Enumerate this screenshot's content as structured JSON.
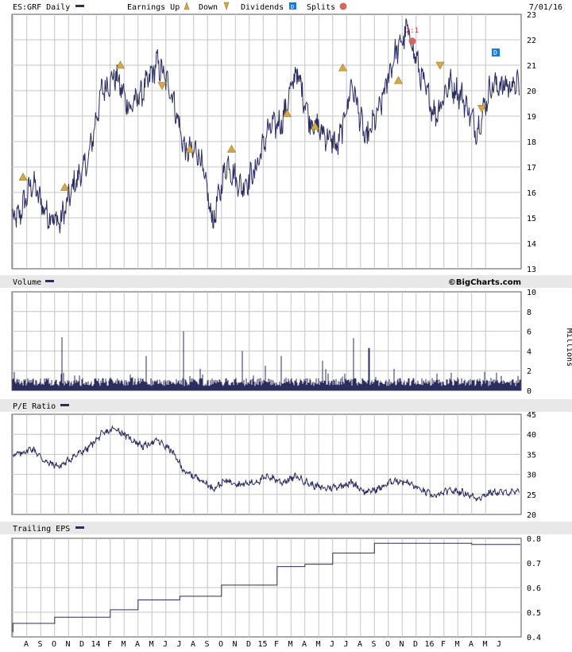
{
  "header": {
    "symbol": "ES:GRF Daily",
    "earnings_label": "Earnings Up",
    "down_label": "Down",
    "dividends_label": "Dividends",
    "splits_label": "Splits",
    "date": "7/01/16",
    "watermark": "©BigCharts.com"
  },
  "colors": {
    "series": "#2b2d5e",
    "grid": "#c4c4c4",
    "earn": "#d4a84a",
    "dividend": "#1a78d8",
    "split": "#d06868",
    "band": "#e8e8e8"
  },
  "x_axis": {
    "labels": [
      "A",
      "S",
      "O",
      "N",
      "D",
      "14",
      "F",
      "M",
      "A",
      "M",
      "J",
      "J",
      "A",
      "S",
      "O",
      "N",
      "D",
      "15",
      "F",
      "M",
      "A",
      "M",
      "J",
      "J",
      "A",
      "S",
      "O",
      "N",
      "D",
      "16",
      "F",
      "M",
      "A",
      "M",
      "J"
    ]
  },
  "panels": {
    "volume": {
      "title": "Volume",
      "unit_label": "Millions"
    },
    "pe": {
      "title": "P/E Ratio"
    },
    "eps": {
      "title": "Trailing EPS"
    }
  },
  "chart_data": [
    {
      "type": "line",
      "panel": "price",
      "title": "ES:GRF Daily",
      "ylim": [
        13,
        23
      ],
      "yticks": [
        13,
        14,
        15,
        16,
        17,
        18,
        19,
        20,
        21,
        22,
        23
      ],
      "x": [
        "2013-08",
        "2013-09",
        "2013-10",
        "2013-11",
        "2013-12",
        "2014-01",
        "2014-02",
        "2014-03",
        "2014-04",
        "2014-05",
        "2014-06",
        "2014-07",
        "2014-08",
        "2014-09",
        "2014-10",
        "2014-11",
        "2014-12",
        "2015-01",
        "2015-02",
        "2015-03",
        "2015-04",
        "2015-05",
        "2015-06",
        "2015-07",
        "2015-08",
        "2015-09",
        "2015-10",
        "2015-11",
        "2015-12",
        "2016-01",
        "2016-02",
        "2016-03",
        "2016-04",
        "2016-05",
        "2016-06"
      ],
      "values": [
        15.0,
        16.4,
        15.2,
        14.8,
        16.3,
        17.2,
        20.0,
        20.6,
        19.3,
        20.0,
        21.1,
        20.0,
        17.6,
        17.6,
        14.8,
        17.2,
        16.2,
        16.8,
        18.5,
        18.8,
        20.8,
        18.8,
        18.3,
        17.8,
        20.3,
        18.0,
        19.3,
        21.3,
        22.4,
        20.5,
        19.0,
        20.3,
        19.7,
        18.4,
        20.2
      ],
      "annotations": [
        {
          "kind": "earnings-up",
          "x": "2013-08",
          "y": 16.6
        },
        {
          "kind": "earnings-up",
          "x": "2013-11",
          "y": 16.2
        },
        {
          "kind": "earnings-up",
          "x": "2014-03",
          "y": 21.0
        },
        {
          "kind": "earnings-down",
          "x": "2014-06",
          "y": 20.2
        },
        {
          "kind": "earnings-up",
          "x": "2014-08",
          "y": 17.7
        },
        {
          "kind": "earnings-up",
          "x": "2014-11",
          "y": 17.7
        },
        {
          "kind": "earnings-up",
          "x": "2015-03",
          "y": 19.1
        },
        {
          "kind": "earnings-up",
          "x": "2015-05",
          "y": 18.6
        },
        {
          "kind": "earnings-up",
          "x": "2015-07",
          "y": 20.9
        },
        {
          "kind": "earnings-up",
          "x": "2015-11",
          "y": 20.4
        },
        {
          "kind": "split",
          "x": "2015-12",
          "y": 22.1,
          "label": "2:1"
        },
        {
          "kind": "earnings-down",
          "x": "2016-02",
          "y": 21.0
        },
        {
          "kind": "earnings-down",
          "x": "2016-05",
          "y": 19.3
        },
        {
          "kind": "dividend",
          "x": "2016-06",
          "y": 21.5
        }
      ]
    },
    {
      "type": "bar",
      "panel": "volume",
      "title": "Volume",
      "ylabel": "Millions",
      "ylim": [
        0,
        10
      ],
      "yticks": [
        0,
        2,
        4,
        6,
        8,
        10
      ],
      "typical": 0.9,
      "peaks": [
        {
          "x": "2013-11",
          "value": 5.4
        },
        {
          "x": "2014-05",
          "value": 3.5
        },
        {
          "x": "2014-08",
          "value": 6.0
        },
        {
          "x": "2014-09",
          "value": 2.2
        },
        {
          "x": "2014-12",
          "value": 4.0
        },
        {
          "x": "2015-02",
          "value": 2.5
        },
        {
          "x": "2015-03",
          "value": 3.5
        },
        {
          "x": "2015-06",
          "value": 3.0
        },
        {
          "x": "2015-08",
          "value": 5.3
        },
        {
          "x": "2015-09",
          "value": 4.3
        },
        {
          "x": "2015-11",
          "value": 2.2
        }
      ]
    },
    {
      "type": "line",
      "panel": "pe",
      "title": "P/E Ratio",
      "ylim": [
        20,
        45
      ],
      "yticks": [
        20,
        25,
        30,
        35,
        40,
        45
      ],
      "x": [
        "2013-08",
        "2013-09",
        "2013-10",
        "2013-11",
        "2013-12",
        "2014-01",
        "2014-02",
        "2014-03",
        "2014-04",
        "2014-05",
        "2014-06",
        "2014-07",
        "2014-08",
        "2014-09",
        "2014-10",
        "2014-11",
        "2014-12",
        "2015-01",
        "2015-02",
        "2015-03",
        "2015-04",
        "2015-05",
        "2015-06",
        "2015-07",
        "2015-08",
        "2015-09",
        "2015-10",
        "2015-11",
        "2015-12",
        "2016-01",
        "2016-02",
        "2016-03",
        "2016-04",
        "2016-05",
        "2016-06"
      ],
      "values": [
        35.0,
        36.5,
        33.0,
        32.0,
        34.5,
        36.5,
        40.0,
        41.5,
        39.0,
        37.0,
        38.5,
        36.0,
        30.5,
        29.0,
        26.5,
        28.5,
        27.5,
        28.0,
        29.5,
        28.0,
        29.5,
        27.5,
        26.5,
        27.0,
        28.0,
        25.5,
        26.5,
        28.5,
        28.0,
        26.0,
        24.5,
        26.0,
        25.5,
        24.0,
        25.5
      ]
    },
    {
      "type": "line",
      "panel": "eps",
      "title": "Trailing EPS",
      "ylim": [
        0.4,
        0.8
      ],
      "yticks": [
        0.4,
        0.5,
        0.6,
        0.7,
        0.8
      ],
      "steps": [
        {
          "from": "2013-07",
          "value": 0.42
        },
        {
          "from": "2013-08",
          "value": 0.455
        },
        {
          "from": "2013-11",
          "value": 0.48
        },
        {
          "from": "2014-03",
          "value": 0.51
        },
        {
          "from": "2014-05",
          "value": 0.55
        },
        {
          "from": "2014-08",
          "value": 0.565
        },
        {
          "from": "2014-11",
          "value": 0.61
        },
        {
          "from": "2015-03",
          "value": 0.685
        },
        {
          "from": "2015-05",
          "value": 0.695
        },
        {
          "from": "2015-07",
          "value": 0.74
        },
        {
          "from": "2015-10",
          "value": 0.78
        },
        {
          "from": "2016-05",
          "value": 0.775
        }
      ]
    }
  ]
}
